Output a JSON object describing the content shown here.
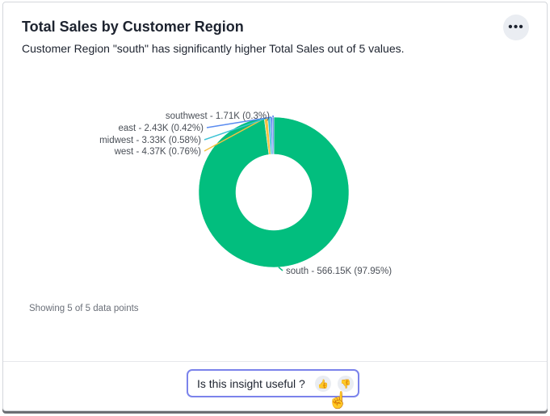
{
  "header": {
    "title": "Total Sales by Customer Region",
    "subtitle": "Customer Region \"south\" has significantly higher Total Sales out of 5 values.",
    "more_icon": "ellipsis-icon"
  },
  "chart_data": {
    "type": "pie",
    "donut": true,
    "categories": [
      "south",
      "west",
      "midwest",
      "east",
      "southwest"
    ],
    "values": [
      566.15,
      4.37,
      3.33,
      2.43,
      1.71
    ],
    "percent": [
      97.95,
      0.76,
      0.58,
      0.42,
      0.3
    ],
    "labels": [
      "south - 566.15K (97.95%)",
      "west - 4.37K (0.76%)",
      "midwest - 3.33K (0.58%)",
      "east - 2.43K (0.42%)",
      "southwest - 1.71K (0.3%)"
    ],
    "colors": [
      "#02be7e",
      "#f5c243",
      "#40c4d6",
      "#5b8cf0",
      "#4a78e6"
    ],
    "unit": "K"
  },
  "footer": {
    "showing": "Showing 5 of 5 data points",
    "feedback_question": "Is this insight useful ?",
    "thumbs_up_icon": "thumbs-up-icon",
    "thumbs_down_icon": "thumbs-down-icon"
  }
}
